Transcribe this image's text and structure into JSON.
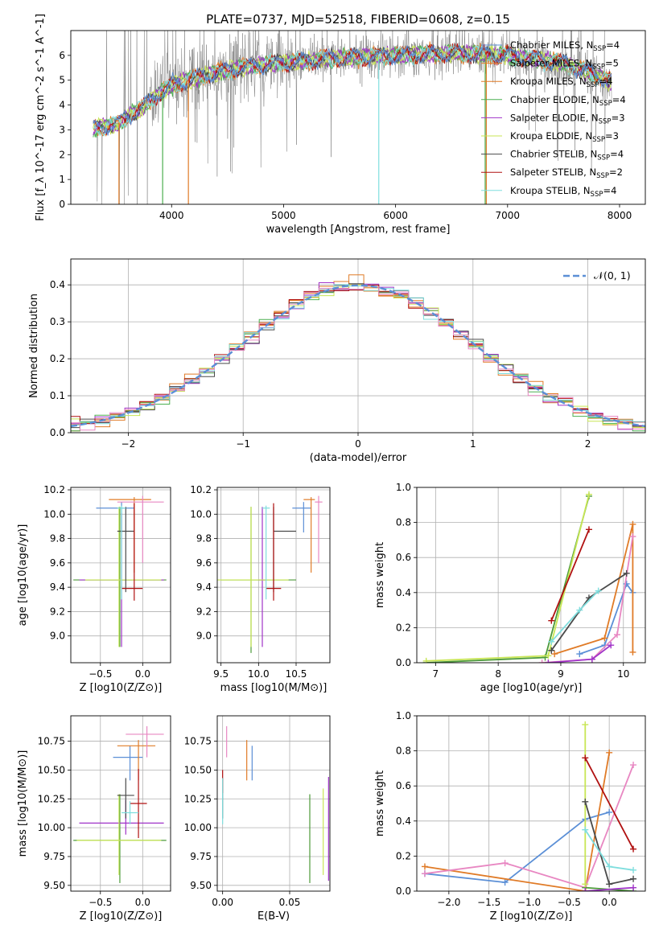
{
  "figure_title": "PLATE=0737, MJD=52518, FIBERID=0608, z=0.15",
  "colors": {
    "grid": "#b0b0b0",
    "data": "#808080",
    "normal": "#5b8fd6",
    "ssp": [
      "#5b8fd6",
      "#e07b27",
      "#e07b27",
      "#4caf50",
      "#a033c8",
      "#c8e655",
      "#4a4a4a",
      "#b01010",
      "#7fdede"
    ],
    "panel_series": [
      "#5b8fd6",
      "#e07b27",
      "#e887c2",
      "#4c9a3a",
      "#a033c8",
      "#c8e655",
      "#4a4a4a",
      "#b01010",
      "#7fdede"
    ]
  },
  "chart_data": [
    {
      "id": "spectrum",
      "type": "line",
      "xlabel": "wavelength [Angstrom, rest frame]",
      "ylabel": "Flux [f_λ 10^-17 erg cm^-2 s^-1 A^-1]",
      "xlim": [
        3100,
        8230
      ],
      "ylim": [
        0,
        7
      ],
      "xticks": [
        "4000",
        "5000",
        "6000",
        "7000",
        "8000"
      ],
      "yticks": [
        "0",
        "1",
        "2",
        "3",
        "4",
        "5",
        "6"
      ],
      "grid": false,
      "legend_position": "upper right",
      "legend": [
        {
          "imf": "Chabrier",
          "lib": "MILES",
          "n": "4"
        },
        {
          "imf": "Salpeter",
          "lib": "MILES",
          "n": "5"
        },
        {
          "imf": "Kroupa",
          "lib": "MILES",
          "n": "4"
        },
        {
          "imf": "Chabrier",
          "lib": "ELODIE",
          "n": "4"
        },
        {
          "imf": "Salpeter",
          "lib": "ELODIE",
          "n": "3"
        },
        {
          "imf": "Kroupa",
          "lib": "ELODIE",
          "n": "3"
        },
        {
          "imf": "Chabrier",
          "lib": "STELIB",
          "n": "4"
        },
        {
          "imf": "Salpeter",
          "lib": "STELIB",
          "n": "2"
        },
        {
          "imf": "Kroupa",
          "lib": "STELIB",
          "n": "4"
        }
      ],
      "continuum_x": [
        3300,
        3500,
        3700,
        3900,
        4000,
        4300,
        4600,
        5000,
        5500,
        6000,
        6500,
        7000,
        7500,
        7900
      ],
      "continuum_y": [
        3.1,
        3.2,
        3.8,
        4.5,
        4.8,
        5.2,
        5.5,
        5.7,
        5.9,
        6.0,
        6.1,
        6.0,
        5.7,
        5.0
      ]
    },
    {
      "id": "residual_hist",
      "type": "line",
      "xlabel": "(data-model)/error",
      "ylabel": "Normed distribution",
      "xlim": [
        -2.5,
        2.5
      ],
      "ylim": [
        0,
        0.47
      ],
      "xticks": [
        "−2",
        "−1",
        "0",
        "1",
        "2"
      ],
      "yticks": [
        "0.0",
        "0.1",
        "0.2",
        "0.3",
        "0.4"
      ],
      "grid": true,
      "legend": "𝒩(0, 1)",
      "legend_position": "upper right"
    },
    {
      "id": "age_vs_Z",
      "type": "scatter",
      "xlabel": "Z [log10(Z/Z⊙)]",
      "ylabel": "age [log10(age/yr)]",
      "xlim": [
        -0.85,
        0.33
      ],
      "ylim": [
        8.78,
        10.22
      ],
      "xticks": [
        "−0.5",
        "0.0"
      ],
      "yticks": [
        "9.0",
        "9.2",
        "9.4",
        "9.6",
        "9.8",
        "10.0",
        "10.2"
      ],
      "points": [
        {
          "x": -0.25,
          "y": 10.05,
          "xerr": [
            0.3,
            0.15
          ],
          "yerr": [
            0.2,
            0.05
          ]
        },
        {
          "x": -0.1,
          "y": 10.12,
          "xerr": [
            0.3,
            0.2
          ],
          "yerr": [
            0.6,
            0.02
          ]
        },
        {
          "x": 0.0,
          "y": 10.1,
          "xerr": [
            0.3,
            0.25
          ],
          "yerr": [
            0.5,
            0.05
          ]
        },
        {
          "x": -0.27,
          "y": 9.46,
          "xerr": [
            0.55,
            0.55
          ],
          "yerr": [
            0.55,
            0.6
          ]
        },
        {
          "x": -0.25,
          "y": 9.46,
          "xerr": [
            0.5,
            0.5
          ],
          "yerr": [
            0.55,
            0.55
          ]
        },
        {
          "x": -0.28,
          "y": 9.46,
          "xerr": [
            0.4,
            0.5
          ],
          "yerr": [
            0.55,
            0.6
          ]
        },
        {
          "x": -0.2,
          "y": 9.86,
          "xerr": [
            0.1,
            0.1
          ],
          "yerr": [
            0.5,
            0.2
          ]
        },
        {
          "x": -0.1,
          "y": 9.39,
          "xerr": [
            0.15,
            0.1
          ],
          "yerr": [
            0.1,
            0.7
          ]
        },
        {
          "x": -0.25,
          "y": 10.05,
          "xerr": [
            0.05,
            0.05
          ],
          "yerr": [
            0.75,
            0.02
          ]
        }
      ]
    },
    {
      "id": "age_vs_mass",
      "type": "scatter",
      "xlabel": "mass [log10(M/M⊙)]",
      "ylabel": "",
      "xlim": [
        9.45,
        10.95
      ],
      "ylim": [
        8.78,
        10.22
      ],
      "xticks": [
        "9.5",
        "10.0",
        "10.5"
      ],
      "yticks": [
        "9.0",
        "9.2",
        "9.4",
        "9.6",
        "9.8",
        "10.0",
        "10.2"
      ],
      "points": [
        {
          "x": 10.6,
          "y": 10.05,
          "xerr": [
            0.15,
            0.1
          ],
          "yerr": [
            0.2,
            0.05
          ]
        },
        {
          "x": 10.7,
          "y": 10.12,
          "xerr": [
            0.1,
            0.05
          ],
          "yerr": [
            0.6,
            0.02
          ]
        },
        {
          "x": 10.8,
          "y": 10.1,
          "xerr": [
            0.05,
            0.05
          ],
          "yerr": [
            0.5,
            0.05
          ]
        },
        {
          "x": 9.9,
          "y": 9.46,
          "xerr": [
            0.4,
            0.6
          ],
          "yerr": [
            0.6,
            0.6
          ]
        },
        {
          "x": 10.05,
          "y": 9.46,
          "xerr": [
            0.05,
            0.05
          ],
          "yerr": [
            0.55,
            0.6
          ]
        },
        {
          "x": 9.9,
          "y": 9.46,
          "xerr": [
            0.45,
            0.5
          ],
          "yerr": [
            0.55,
            0.6
          ]
        },
        {
          "x": 10.2,
          "y": 9.86,
          "xerr": [
            0.0,
            0.3
          ],
          "yerr": [
            0.5,
            0.2
          ]
        },
        {
          "x": 10.2,
          "y": 9.39,
          "xerr": [
            0.1,
            0.1
          ],
          "yerr": [
            0.1,
            0.7
          ]
        },
        {
          "x": 10.1,
          "y": 10.05,
          "xerr": [
            0.05,
            0.05
          ],
          "yerr": [
            0.75,
            0.02
          ]
        }
      ]
    },
    {
      "id": "weight_vs_age",
      "type": "line",
      "xlabel": "age [log10(age/yr)]",
      "ylabel": "mass weight",
      "xlim": [
        6.7,
        10.35
      ],
      "ylim": [
        0,
        1.0
      ],
      "xticks": [
        "7",
        "8",
        "9",
        "10"
      ],
      "yticks": [
        "0.0",
        "0.2",
        "0.4",
        "0.6",
        "0.8",
        "1.0"
      ],
      "grid": true,
      "series": [
        {
          "x": [
            9.3,
            9.7,
            10.05,
            10.15
          ],
          "y": [
            0.05,
            0.1,
            0.45,
            0.4
          ]
        },
        {
          "x": [
            8.9,
            9.7,
            10.15,
            10.15
          ],
          "y": [
            0.05,
            0.14,
            0.79,
            0.06
          ]
        },
        {
          "x": [
            8.7,
            9.5,
            9.9,
            10.15
          ],
          "y": [
            0.0,
            0.02,
            0.16,
            0.72
          ]
        },
        {
          "x": [
            6.85,
            8.75,
            9.45
          ],
          "y": [
            0.0,
            0.03,
            0.95
          ]
        },
        {
          "x": [
            8.8,
            9.5,
            9.8
          ],
          "y": [
            0.0,
            0.02,
            0.1
          ]
        },
        {
          "x": [
            6.85,
            8.8,
            9.45
          ],
          "y": [
            0.01,
            0.04,
            0.96
          ]
        },
        {
          "x": [
            8.85,
            9.45,
            10.05
          ],
          "y": [
            0.07,
            0.37,
            0.51
          ]
        },
        {
          "x": [
            8.85,
            9.45
          ],
          "y": [
            0.24,
            0.76
          ]
        },
        {
          "x": [
            8.85,
            9.3,
            9.6
          ],
          "y": [
            0.12,
            0.3,
            0.41
          ]
        }
      ]
    },
    {
      "id": "mass_vs_Z",
      "type": "scatter",
      "xlabel": "Z [log10(Z/Z⊙)]",
      "ylabel": "mass [log10(M/M⊙)]",
      "xlim": [
        -0.85,
        0.33
      ],
      "ylim": [
        9.45,
        10.97
      ],
      "xticks": [
        "−0.5",
        "0.0"
      ],
      "yticks": [
        "9.50",
        "9.75",
        "10.00",
        "10.25",
        "10.50",
        "10.75"
      ],
      "points": [
        {
          "x": -0.15,
          "y": 10.61,
          "xerr": [
            0.2,
            0.15
          ],
          "yerr": [
            0.2,
            0.1
          ]
        },
        {
          "x": -0.05,
          "y": 10.71,
          "xerr": [
            0.25,
            0.2
          ],
          "yerr": [
            0.3,
            0.05
          ]
        },
        {
          "x": 0.05,
          "y": 10.81,
          "xerr": [
            0.25,
            0.2
          ],
          "yerr": [
            0.2,
            0.07
          ]
        },
        {
          "x": -0.27,
          "y": 9.89,
          "xerr": [
            0.55,
            0.55
          ],
          "yerr": [
            0.37,
            0.4
          ]
        },
        {
          "x": -0.2,
          "y": 10.04,
          "xerr": [
            0.55,
            0.45
          ],
          "yerr": [
            0.1,
            0.2
          ]
        },
        {
          "x": -0.28,
          "y": 9.89,
          "xerr": [
            0.5,
            0.5
          ],
          "yerr": [
            0.3,
            0.4
          ]
        },
        {
          "x": -0.2,
          "y": 10.28,
          "xerr": [
            0.1,
            0.1
          ],
          "yerr": [
            0.2,
            0.15
          ]
        },
        {
          "x": -0.05,
          "y": 10.21,
          "xerr": [
            0.1,
            0.1
          ],
          "yerr": [
            0.3,
            0.3
          ]
        },
        {
          "x": -0.15,
          "y": 10.13,
          "xerr": [
            0.1,
            0.1
          ],
          "yerr": [
            0.1,
            0.1
          ]
        }
      ]
    },
    {
      "id": "mass_vs_ebv",
      "type": "scatter",
      "xlabel": "E(B-V)",
      "ylabel": "",
      "xlim": [
        -0.004,
        0.08
      ],
      "ylim": [
        9.45,
        10.97
      ],
      "xticks": [
        "0.00",
        "0.05"
      ],
      "yticks": [
        "9.50",
        "9.75",
        "10.00",
        "10.25",
        "10.50",
        "10.75"
      ],
      "points": [
        {
          "x": 0.022,
          "y": 10.61,
          "xerr": [
            0,
            0
          ],
          "yerr": [
            0.2,
            0.1
          ]
        },
        {
          "x": 0.018,
          "y": 10.71,
          "xerr": [
            0,
            0
          ],
          "yerr": [
            0.3,
            0.05
          ]
        },
        {
          "x": 0.003,
          "y": 10.81,
          "xerr": [
            0,
            0
          ],
          "yerr": [
            0.2,
            0.07
          ]
        },
        {
          "x": 0.065,
          "y": 9.89,
          "xerr": [
            0,
            0
          ],
          "yerr": [
            0.37,
            0.4
          ]
        },
        {
          "x": 0.079,
          "y": 10.04,
          "xerr": [
            0,
            0
          ],
          "yerr": [
            0.5,
            0.4
          ]
        },
        {
          "x": 0.075,
          "y": 9.89,
          "xerr": [
            0,
            0
          ],
          "yerr": [
            0.3,
            0.45
          ]
        },
        {
          "x": 0.0,
          "y": 10.28,
          "xerr": [
            0,
            0
          ],
          "yerr": [
            0.2,
            0.15
          ]
        },
        {
          "x": 0.0,
          "y": 10.4,
          "xerr": [
            0,
            0
          ],
          "yerr": [
            0.1,
            0.1
          ]
        },
        {
          "x": 0.0,
          "y": 10.13,
          "xerr": [
            0,
            0
          ],
          "yerr": [
            0.1,
            0.3
          ]
        }
      ]
    },
    {
      "id": "weight_vs_Z",
      "type": "line",
      "xlabel": "Z [log10(Z/Z⊙)]",
      "ylabel": "mass weight",
      "xlim": [
        -2.4,
        0.45
      ],
      "ylim": [
        0,
        1.0
      ],
      "xticks": [
        "−2.0",
        "−1.5",
        "−1.0",
        "−0.5",
        "0.0"
      ],
      "yticks": [
        "0.0",
        "0.2",
        "0.4",
        "0.6",
        "0.8",
        "1.0"
      ],
      "grid": true,
      "series": [
        {
          "x": [
            -2.3,
            -1.3,
            -0.3,
            0.0
          ],
          "y": [
            0.1,
            0.05,
            0.41,
            0.45
          ]
        },
        {
          "x": [
            -2.3,
            -0.3,
            0.0
          ],
          "y": [
            0.14,
            0.0,
            0.79
          ]
        },
        {
          "x": [
            -2.3,
            -1.3,
            -0.3,
            0.3
          ],
          "y": [
            0.1,
            0.16,
            0.02,
            0.72
          ]
        },
        {
          "x": [
            -0.3,
            0.3
          ],
          "y": [
            0.02,
            0.0
          ]
        },
        {
          "x": [
            -0.3,
            0.3
          ],
          "y": [
            0.0,
            0.02
          ]
        },
        {
          "x": [
            -0.3,
            -0.3
          ],
          "y": [
            0.04,
            0.95
          ]
        },
        {
          "x": [
            -0.3,
            0.0,
            0.3
          ],
          "y": [
            0.51,
            0.04,
            0.07
          ]
        },
        {
          "x": [
            -0.3,
            0.3
          ],
          "y": [
            0.76,
            0.24
          ]
        },
        {
          "x": [
            -0.3,
            0.0,
            0.3
          ],
          "y": [
            0.35,
            0.14,
            0.12
          ]
        }
      ]
    }
  ]
}
